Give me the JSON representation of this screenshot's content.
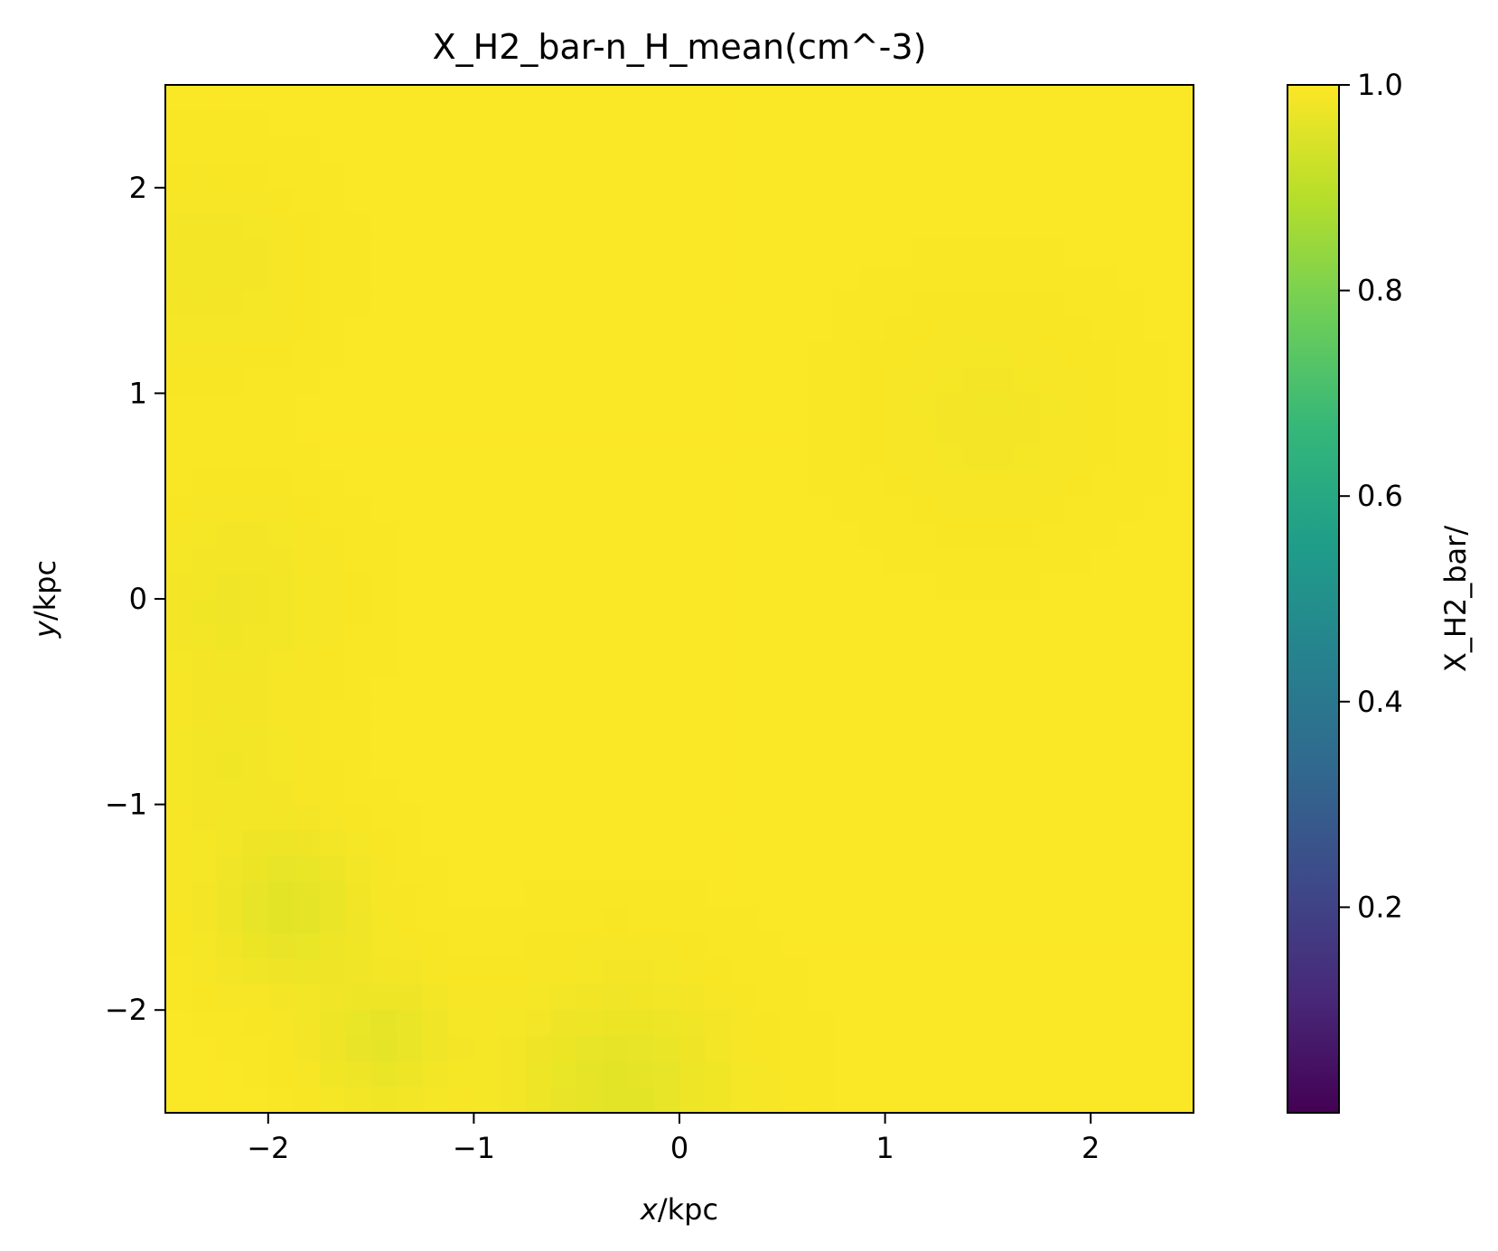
{
  "chart_data": {
    "type": "heatmap",
    "title": "X_H2_bar-n_H_mean(cm^-3)",
    "xlabel_var": "x",
    "xlabel_unit": "/kpc",
    "ylabel_var": "y",
    "ylabel_unit": "/kpc",
    "xlim": [
      -2.5,
      2.5
    ],
    "ylim": [
      -2.5,
      2.5
    ],
    "xticks": [
      -2,
      -1,
      0,
      1,
      2
    ],
    "yticks": [
      -2,
      -1,
      0,
      1,
      2
    ],
    "xtick_labels": [
      "−2",
      "−1",
      "0",
      "1",
      "2"
    ],
    "ytick_labels": [
      "−2",
      "−1",
      "0",
      "1",
      "2"
    ],
    "grid": false,
    "colorbar": {
      "label": "X_H2_bar/",
      "colormap": "viridis",
      "range": [
        0.0,
        1.0
      ],
      "ticks": [
        0.2,
        0.4,
        0.6,
        0.8,
        1.0
      ],
      "tick_labels": [
        "0.2",
        "0.4",
        "0.6",
        "0.8",
        "1.0"
      ]
    },
    "field": {
      "description_value_range": [
        0.96,
        1.0
      ],
      "base_value": 0.995,
      "dips": [
        {
          "x": -1.9,
          "y": -1.5,
          "sigma": 0.25,
          "depth": 0.035
        },
        {
          "x": -1.45,
          "y": -2.15,
          "sigma": 0.22,
          "depth": 0.03
        },
        {
          "x": -0.3,
          "y": -2.4,
          "sigma": 0.35,
          "depth": 0.035
        },
        {
          "x": -2.15,
          "y": 0.0,
          "sigma": 0.3,
          "depth": 0.015
        },
        {
          "x": -2.3,
          "y": 1.6,
          "sigma": 0.3,
          "depth": 0.012
        },
        {
          "x": 1.5,
          "y": 0.9,
          "sigma": 0.35,
          "depth": 0.01
        },
        {
          "x": -2.2,
          "y": -0.8,
          "sigma": 0.25,
          "depth": 0.012
        }
      ]
    }
  },
  "colors": {
    "viridis_stops": [
      "#440154",
      "#482878",
      "#3e4989",
      "#31688e",
      "#26828e",
      "#1f9e89",
      "#35b779",
      "#6ece58",
      "#b5de2b",
      "#fde725"
    ]
  }
}
